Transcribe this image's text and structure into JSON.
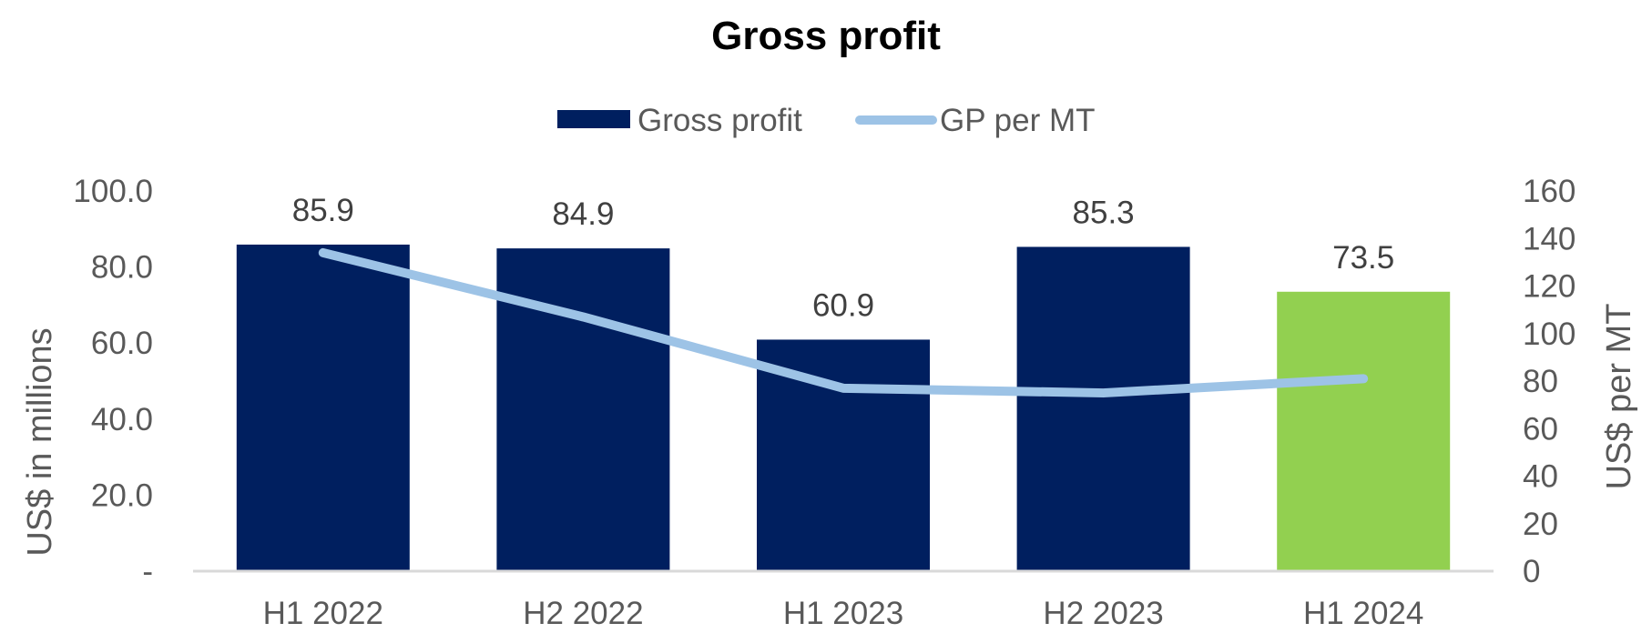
{
  "chart_data": {
    "type": "bar",
    "title": "Gross profit",
    "categories": [
      "H1 2022",
      "H2 2022",
      "H1 2023",
      "H2 2023",
      "H1 2024"
    ],
    "series": [
      {
        "name": "Gross profit",
        "kind": "bar",
        "axis": "left",
        "values": [
          85.9,
          84.9,
          60.9,
          85.3,
          73.5
        ],
        "data_labels": [
          "85.9",
          "84.9",
          "60.9",
          "85.3",
          "73.5"
        ],
        "colors": [
          "#001f5f",
          "#001f5f",
          "#001f5f",
          "#001f5f",
          "#92d050"
        ]
      },
      {
        "name": "GP per MT",
        "kind": "line",
        "axis": "right",
        "values": [
          134,
          107,
          77,
          75,
          81
        ],
        "color": "#9dc3e6"
      }
    ],
    "ylabel": "US$ in millions",
    "ylim": [
      0,
      100
    ],
    "yticks": [
      "-",
      "20.0",
      "40.0",
      "60.0",
      "80.0",
      "100.0"
    ],
    "y2label": "US$ per MT",
    "y2lim": [
      0,
      160
    ],
    "y2ticks": [
      "0",
      "20",
      "40",
      "60",
      "80",
      "100",
      "120",
      "140",
      "160"
    ],
    "legend_position": "top",
    "grid": false
  }
}
